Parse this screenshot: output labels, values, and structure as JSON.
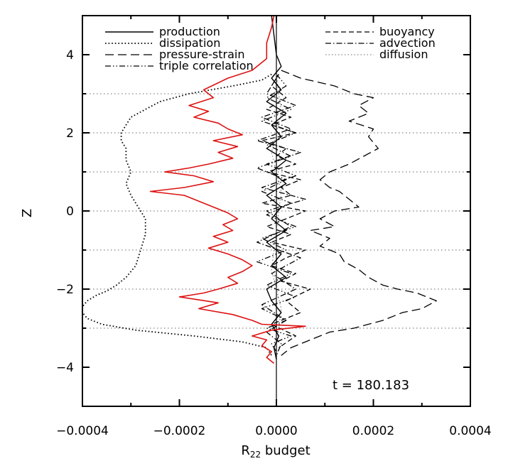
{
  "chart_data": {
    "type": "line",
    "xlabel_main": "R",
    "xlabel_sub": "22",
    "xlabel_rest": " budget",
    "ylabel": "Z",
    "xlim": [
      -0.0004,
      0.0004
    ],
    "ylim": [
      -5,
      5
    ],
    "xticks": [
      -0.0004,
      -0.0002,
      0.0,
      0.0002,
      0.0004
    ],
    "xtick_labels": [
      "−0.0004",
      "−0.0002",
      "0.0000",
      "0.0002",
      "0.0004"
    ],
    "yticks": [
      -4,
      -2,
      0,
      2,
      4
    ],
    "ytick_labels": [
      "−4",
      "−2",
      "0",
      "2",
      "4"
    ],
    "hlines": [
      -3,
      -2,
      -1,
      0,
      1,
      2,
      3
    ],
    "annotation": "t = 180.183",
    "legend_left": [
      "production",
      "dissipation",
      "pressure-strain",
      "triple correlation"
    ],
    "legend_right": [
      "buoyancy",
      "advection",
      "diffusion"
    ],
    "series": [
      {
        "name": "dissipation",
        "style": "dotted",
        "color": "#000000",
        "x": [
          -1e-05,
          -3e-05,
          -9e-05,
          -0.00018,
          -0.00024,
          -0.00027,
          -0.0003,
          -0.00031,
          -0.00032,
          -0.00032,
          -0.00031,
          -0.00031,
          -0.0003,
          -0.00031,
          -0.0003,
          -0.00029,
          -0.00028,
          -0.00027,
          -0.00027,
          -0.00028,
          -0.00029,
          -0.00031,
          -0.00033,
          -0.00035,
          -0.00037,
          -0.00039,
          -0.0004,
          -0.0004,
          -0.00039,
          -0.00036,
          -0.00029,
          -0.00017,
          -7e-05,
          -2e-05,
          -1e-05
        ],
        "y": [
          3.5,
          3.35,
          3.2,
          3.0,
          2.8,
          2.6,
          2.4,
          2.2,
          2.0,
          1.8,
          1.6,
          1.3,
          1.0,
          0.7,
          0.4,
          0.2,
          0.0,
          -0.2,
          -0.6,
          -1.0,
          -1.4,
          -1.7,
          -1.9,
          -2.05,
          -2.15,
          -2.3,
          -2.45,
          -2.6,
          -2.75,
          -2.9,
          -3.05,
          -3.2,
          -3.35,
          -3.5,
          -3.7
        ]
      },
      {
        "name": "buoyancy",
        "style": "longdash",
        "color": "#000000",
        "x": [
          1e-05,
          5e-05,
          0.00012,
          0.00016,
          0.0002,
          0.00017,
          0.00019,
          0.00015,
          0.0002,
          0.00019,
          0.00021,
          0.00018,
          0.00015,
          0.00011,
          9e-05,
          0.00011,
          0.00013,
          0.00015,
          0.00017,
          0.00012,
          9e-05,
          0.00012,
          7e-05,
          0.00011,
          9e-05,
          0.00013,
          0.00014,
          0.00017,
          0.00019,
          0.00022,
          0.00025,
          0.00029,
          0.00031,
          0.00033,
          0.0003,
          0.00026,
          0.00022,
          0.00016,
          0.00011,
          7e-05,
          3e-05,
          1e-05
        ],
        "y": [
          3.6,
          3.4,
          3.2,
          3.0,
          2.9,
          2.7,
          2.5,
          2.3,
          2.1,
          1.9,
          1.6,
          1.4,
          1.2,
          1.0,
          0.8,
          0.6,
          0.5,
          0.3,
          0.1,
          0.0,
          -0.2,
          -0.4,
          -0.5,
          -0.7,
          -0.9,
          -1.1,
          -1.3,
          -1.5,
          -1.7,
          -1.9,
          -2.0,
          -2.1,
          -2.2,
          -2.3,
          -2.5,
          -2.6,
          -2.8,
          -3.0,
          -3.1,
          -3.3,
          -3.5,
          -3.7
        ]
      },
      {
        "name": "pressure-strain",
        "style": "dash",
        "color": "#000000",
        "x": [
          5e-06,
          -1e-05,
          2e-05,
          -2e-05,
          3e-05,
          -1e-05,
          4e-05,
          -3e-05,
          2e-05,
          0.0,
          4e-05,
          -2e-05,
          5e-05,
          1e-05,
          3e-05,
          -3e-05,
          6e-05,
          2e-05,
          -2e-05,
          3e-05,
          -1e-05,
          6e-05,
          2e-05,
          -1e-05,
          4e-05,
          1e-05,
          7e-05,
          2e-05,
          5e-05,
          -1e-05,
          4e-05,
          5e-06
        ],
        "y": [
          3.5,
          3.2,
          2.9,
          2.6,
          2.4,
          2.2,
          2.0,
          1.8,
          1.6,
          1.4,
          1.2,
          1.0,
          0.8,
          0.6,
          0.4,
          0.2,
          0.0,
          -0.2,
          -0.4,
          -0.6,
          -0.8,
          -1.0,
          -1.2,
          -1.4,
          -1.6,
          -1.8,
          -2.0,
          -2.3,
          -2.6,
          -2.9,
          -3.2,
          -3.5
        ]
      },
      {
        "name": "triple correlation",
        "style": "dashdotdot",
        "color": "#000000",
        "x": [
          0.0,
          2e-05,
          -2e-05,
          3e-05,
          -3e-05,
          4e-05,
          -2e-05,
          3e-05,
          -4e-05,
          2e-05,
          -3e-05,
          3e-05,
          -2e-05,
          4e-05,
          -3e-05,
          2e-05,
          -4e-05,
          3e-05,
          -2e-05,
          4e-05,
          -3e-05,
          2e-05,
          -2e-05,
          3e-05,
          -1e-05,
          0.0
        ],
        "y": [
          3.5,
          3.2,
          2.9,
          2.6,
          2.3,
          2.0,
          1.7,
          1.4,
          1.1,
          0.8,
          0.5,
          0.2,
          -0.1,
          -0.4,
          -0.7,
          -1.0,
          -1.3,
          -1.6,
          -1.9,
          -2.2,
          -2.5,
          -2.8,
          -3.0,
          -3.2,
          -3.4,
          -3.6
        ]
      },
      {
        "name": "advection",
        "style": "dashdot",
        "color": "#000000",
        "x": [
          0.0,
          -2e-05,
          4e-05,
          -3e-05,
          3e-05,
          -4e-05,
          5e-05,
          -2e-05,
          4e-05,
          -3e-05,
          6e-05,
          -2e-05,
          3e-05,
          -4e-05,
          5e-05,
          -1e-05,
          4e-05,
          -3e-05,
          2e-05,
          -2e-05,
          1e-05,
          0.0
        ],
        "y": [
          3.4,
          3.0,
          2.7,
          2.4,
          2.1,
          1.8,
          1.5,
          1.2,
          0.9,
          0.6,
          0.3,
          0.0,
          -0.4,
          -0.8,
          -1.2,
          -1.6,
          -2.0,
          -2.4,
          -2.8,
          -3.1,
          -3.4,
          -3.7
        ]
      },
      {
        "name": "diffusion",
        "style": "dotted-grey",
        "color": "#888888",
        "x": [
          0.0,
          1e-05,
          -1e-05,
          1e-05,
          0.0,
          -1e-05,
          1e-05,
          0.0
        ],
        "y": [
          3.5,
          2.5,
          1.5,
          0.5,
          -0.5,
          -1.5,
          -2.5,
          -3.5
        ]
      },
      {
        "name": "production",
        "style": "solid",
        "color": "#000000",
        "x": [
          -1e-05,
          -5e-06,
          0.0,
          1e-05,
          -1e-05,
          1e-05,
          -2e-05,
          2e-05,
          -1e-05,
          1e-05,
          -2e-05,
          2e-05,
          -1e-05,
          2e-05,
          -2e-05,
          1e-05,
          -1e-05,
          2e-05,
          -2e-05,
          1e-05,
          -1e-05,
          2e-05,
          -2e-05,
          -1e-05,
          1e-05,
          -1e-05,
          5e-06,
          -5e-06,
          0.0
        ],
        "y": [
          5.0,
          4.5,
          4.0,
          3.7,
          3.4,
          3.1,
          2.8,
          2.5,
          2.2,
          1.9,
          1.6,
          1.3,
          1.0,
          0.7,
          0.4,
          0.1,
          -0.2,
          -0.5,
          -0.8,
          -1.1,
          -1.4,
          -1.7,
          -2.0,
          -2.3,
          -2.6,
          -2.9,
          -3.2,
          -3.5,
          -3.8
        ]
      },
      {
        "name": "",
        "style": "solid",
        "color": "#dd1111",
        "x": [
          -5e-06,
          -1e-05,
          -2e-05,
          -2e-05,
          -5e-05,
          -0.0001,
          -0.00015,
          -0.00013,
          -0.00018,
          -0.00014,
          -0.00017,
          -0.00012,
          -0.0001,
          -7e-05,
          -0.00013,
          -8e-05,
          -0.00012,
          -9e-05,
          -0.00014,
          -0.00018,
          -0.00023,
          -0.00017,
          -0.00013,
          -0.00019,
          -0.00026,
          -0.00019,
          -0.00016,
          -0.00013,
          -0.0001,
          -8e-05,
          -0.00011,
          -9e-05,
          -0.00013,
          -0.0001,
          -0.00014,
          -0.0001,
          -7e-05,
          -5e-05,
          -7e-05,
          -0.0001,
          -8e-05,
          -0.00012,
          -0.00015,
          -0.0002,
          -0.00012,
          -0.00016,
          -9e-05,
          -5e-05,
          -3e-05,
          6e-05,
          -1e-05,
          -5e-05,
          -2e-05,
          -3e-05,
          -1e-05,
          -2e-05,
          -5e-06
        ],
        "y": [
          5.0,
          4.7,
          4.3,
          3.9,
          3.6,
          3.4,
          3.1,
          2.9,
          2.7,
          2.55,
          2.4,
          2.25,
          2.1,
          1.95,
          1.8,
          1.65,
          1.5,
          1.35,
          1.2,
          1.1,
          1.0,
          0.9,
          0.75,
          0.6,
          0.5,
          0.4,
          0.25,
          0.1,
          -0.05,
          -0.2,
          -0.35,
          -0.5,
          -0.65,
          -0.8,
          -0.95,
          -1.1,
          -1.25,
          -1.4,
          -1.55,
          -1.7,
          -1.85,
          -2.0,
          -2.1,
          -2.2,
          -2.35,
          -2.5,
          -2.65,
          -2.8,
          -2.9,
          -2.95,
          -3.05,
          -3.2,
          -3.3,
          -3.45,
          -3.6,
          -3.75,
          -3.9
        ]
      }
    ]
  }
}
